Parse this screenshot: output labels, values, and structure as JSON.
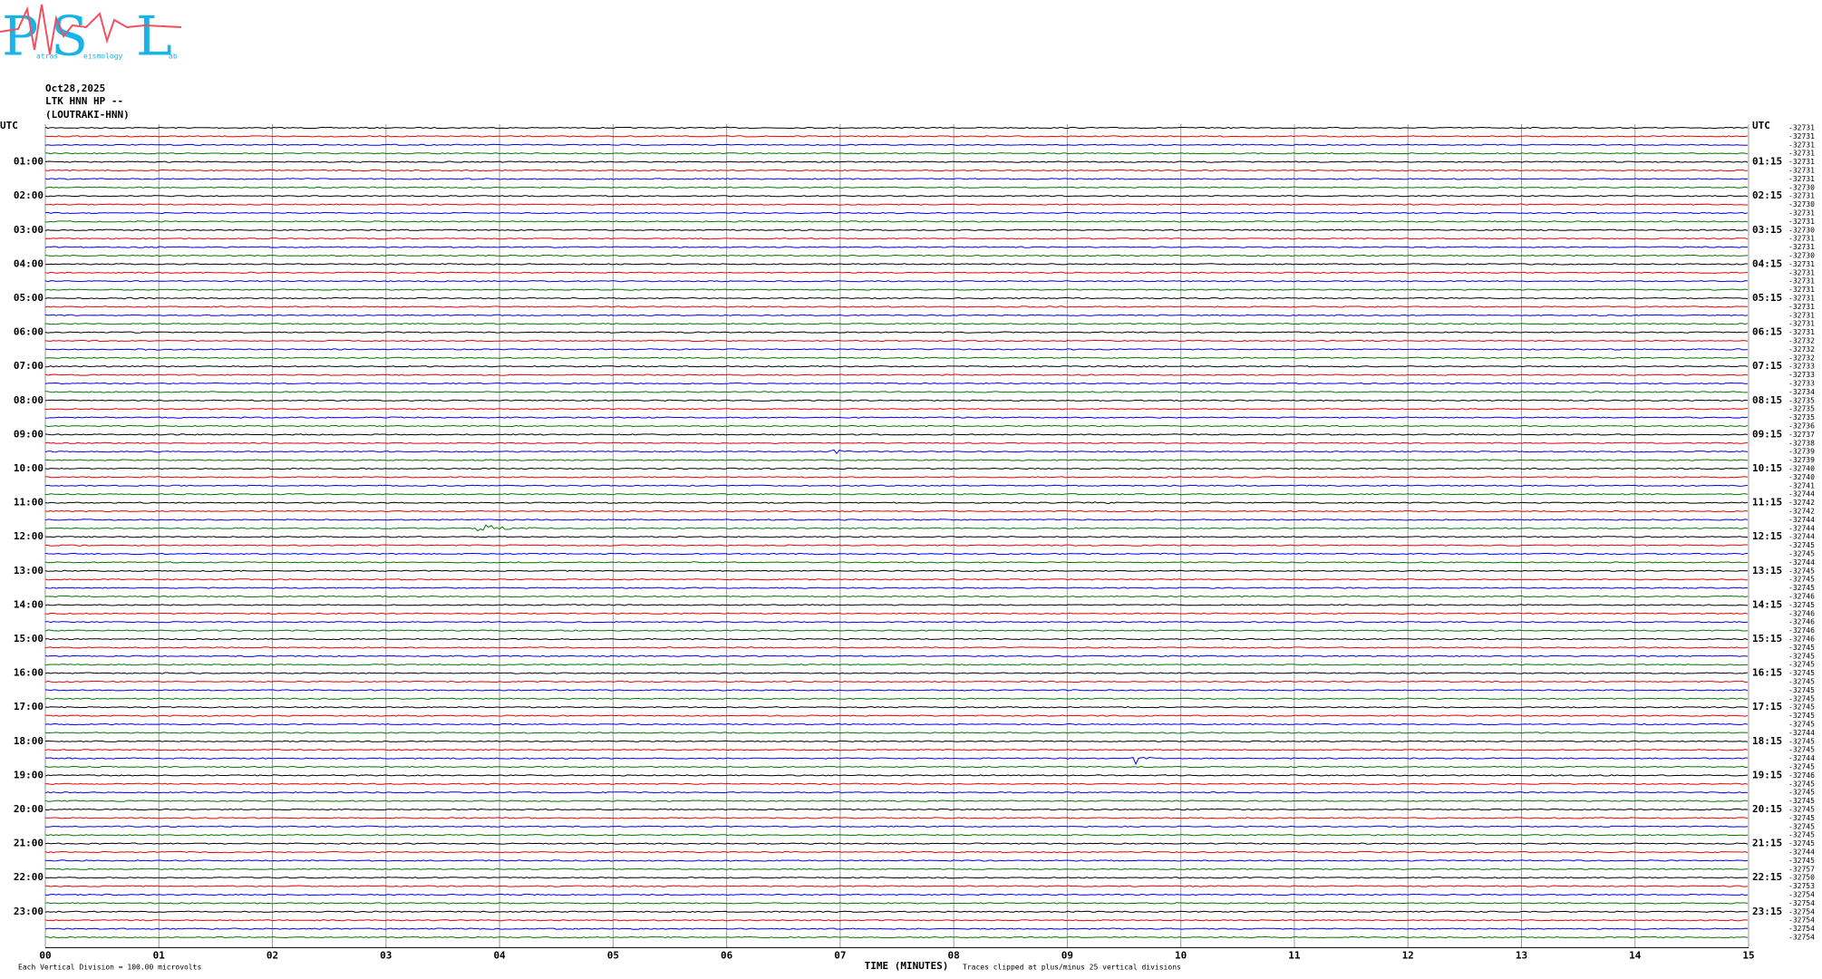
{
  "logo": {
    "p": "P",
    "p_small": "atras",
    "s": "S",
    "s_small": "eismology",
    "l": "L",
    "l_small": "ab"
  },
  "header": {
    "date": "Oct28,2025",
    "station": "LTK HNN HP --",
    "site": "(LOUTRAKI-HNN)"
  },
  "left_labels": [
    "UTC",
    "01:00",
    "02:00",
    "03:00",
    "04:00",
    "05:00",
    "06:00",
    "07:00",
    "08:00",
    "09:00",
    "10:00",
    "11:00",
    "12:00",
    "13:00",
    "14:00",
    "15:00",
    "16:00",
    "17:00",
    "18:00",
    "19:00",
    "20:00",
    "21:00",
    "22:00",
    "23:00"
  ],
  "right_labels": [
    "UTC",
    "01:15",
    "02:15",
    "03:15",
    "04:15",
    "05:15",
    "06:15",
    "07:15",
    "08:15",
    "09:15",
    "10:15",
    "11:15",
    "12:15",
    "13:15",
    "14:15",
    "15:15",
    "16:15",
    "17:15",
    "18:15",
    "19:15",
    "20:15",
    "21:15",
    "22:15",
    "23:15"
  ],
  "offsets": [
    "-32731",
    "-32731",
    "-32731",
    "-32731",
    "-32731",
    "-32731",
    "-32731",
    "-32730",
    "-32731",
    "-32730",
    "-32731",
    "-32731",
    "-32730",
    "-32731",
    "-32731",
    "-32730",
    "-32731",
    "-32731",
    "-32731",
    "-32731",
    "-32731",
    "-32731",
    "-32731",
    "-32731",
    "-32731",
    "-32732",
    "-32732",
    "-32732",
    "-32733",
    "-32733",
    "-32733",
    "-32734",
    "-32735",
    "-32735",
    "-32735",
    "-32736",
    "-32737",
    "-32738",
    "-32739",
    "-32739",
    "-32740",
    "-32740",
    "-32741",
    "-32744",
    "-32742",
    "-32742",
    "-32744",
    "-32744",
    "-32744",
    "-32745",
    "-32745",
    "-32744",
    "-32745",
    "-32745",
    "-32745",
    "-32746",
    "-32745",
    "-32746",
    "-32746",
    "-32746",
    "-32746",
    "-32745",
    "-32745",
    "-32745",
    "-32745",
    "-32745",
    "-32745",
    "-32745",
    "-32745",
    "-32745",
    "-32745",
    "-32744",
    "-32745",
    "-32745",
    "-32744",
    "-32745",
    "-32746",
    "-32745",
    "-32745",
    "-32745",
    "-32745",
    "-32745",
    "-32745",
    "-32745",
    "-32745",
    "-32744",
    "-32745",
    "-32757",
    "-32750",
    "-32753",
    "-32754",
    "-32754",
    "-32754",
    "-32754",
    "-32754",
    "-32754"
  ],
  "x_ticks": [
    "00",
    "01",
    "02",
    "03",
    "04",
    "05",
    "06",
    "07",
    "08",
    "09",
    "10",
    "11",
    "12",
    "13",
    "14",
    "15"
  ],
  "footer": {
    "scale": "Each Vertical Division =  100.00 microvolts",
    "x_label": "TIME (MINUTES)",
    "clip": "Traces clipped at plus/minus 25 vertical divisions"
  }
}
